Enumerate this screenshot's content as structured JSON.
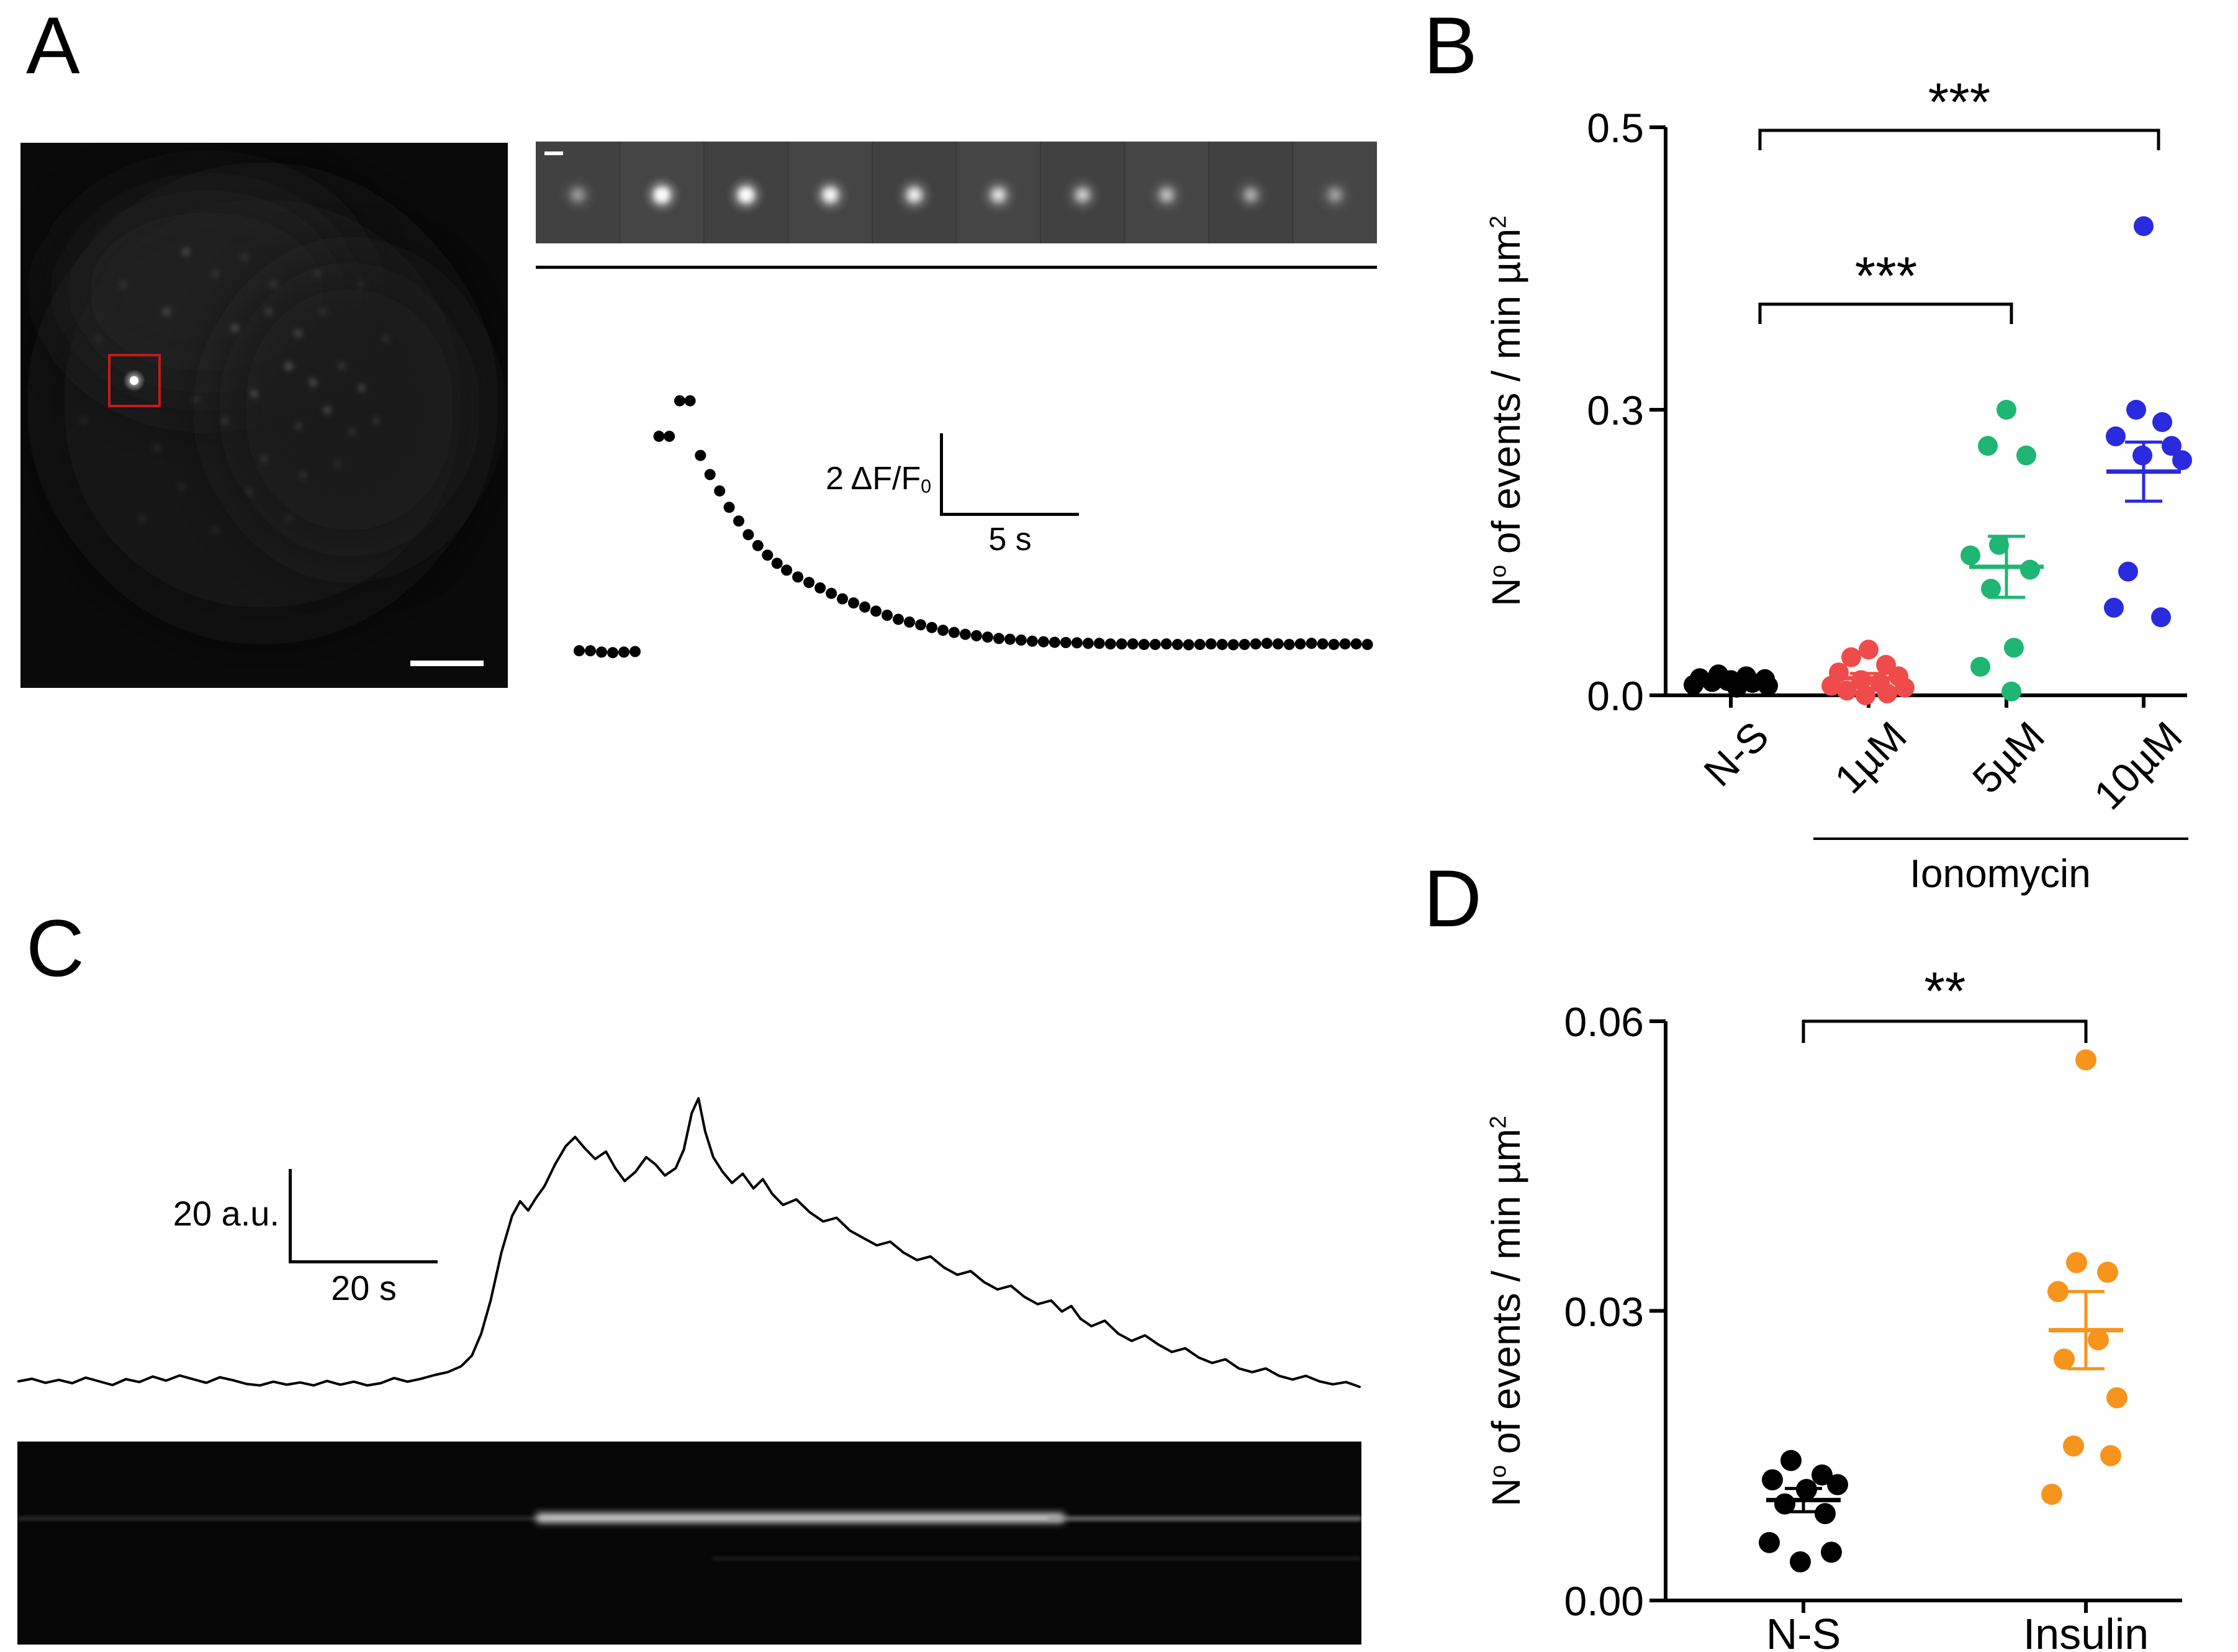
{
  "panelA": {
    "label": "A",
    "scalebar": {
      "y_pre": "2 ",
      "y_unit": "ΔF/F",
      "y_sub": "0",
      "x_label": "5 s"
    },
    "montage": {
      "frames": 10,
      "intensities": [
        0.25,
        0.95,
        0.9,
        0.75,
        0.65,
        0.55,
        0.45,
        0.38,
        0.32,
        0.27
      ]
    },
    "cell_image": {
      "dots": [
        [
          34,
          20,
          5,
          0.3
        ],
        [
          40,
          24,
          4,
          0.25
        ],
        [
          46,
          21,
          4,
          0.2
        ],
        [
          52,
          26,
          4,
          0.25
        ],
        [
          30,
          31,
          5,
          0.3
        ],
        [
          44,
          34,
          5,
          0.35
        ],
        [
          51,
          31,
          4,
          0.3
        ],
        [
          57,
          35,
          5,
          0.3
        ],
        [
          62,
          31,
          4,
          0.22
        ],
        [
          55,
          41,
          5,
          0.4
        ],
        [
          60,
          44,
          5,
          0.35
        ],
        [
          66,
          41,
          4,
          0.28
        ],
        [
          70,
          45,
          5,
          0.3
        ],
        [
          63,
          49,
          5,
          0.35
        ],
        [
          57,
          52,
          4,
          0.3
        ],
        [
          68,
          53,
          4,
          0.26
        ],
        [
          73,
          51,
          4,
          0.22
        ],
        [
          48,
          46,
          5,
          0.32
        ],
        [
          42,
          51,
          4,
          0.26
        ],
        [
          36,
          47,
          4,
          0.2
        ],
        [
          50,
          58,
          4,
          0.26
        ],
        [
          58,
          61,
          4,
          0.22
        ],
        [
          65,
          59,
          4,
          0.2
        ],
        [
          28,
          56,
          4,
          0.2
        ],
        [
          33,
          63,
          4,
          0.16
        ],
        [
          25,
          69,
          4,
          0.18
        ],
        [
          40,
          71,
          4,
          0.16
        ],
        [
          55,
          69,
          4,
          0.16
        ],
        [
          21,
          26,
          4,
          0.2
        ],
        [
          16,
          36,
          4,
          0.16
        ],
        [
          70,
          26,
          4,
          0.16
        ],
        [
          75,
          36,
          4,
          0.2
        ],
        [
          13,
          51,
          4,
          0.15
        ],
        [
          47,
          64,
          4,
          0.18
        ],
        [
          61,
          24,
          4,
          0.2
        ]
      ]
    }
  },
  "panelB": {
    "label": "B",
    "y_title": {
      "p1": "N",
      "sup1": "o",
      "p2": " of events / min µm",
      "sup2": "2"
    },
    "yticks": [
      "0.5",
      "0.3",
      "0.0"
    ],
    "categories": [
      "N-S",
      "1µM",
      "5µM",
      "10µM"
    ],
    "group_label": "Ionomycin",
    "sig_top": "***",
    "sig_mid": "***"
  },
  "panelC": {
    "label": "C",
    "scalebar": {
      "y_label": "20 a.u.",
      "x_label": "20 s"
    }
  },
  "panelD": {
    "label": "D",
    "y_title": {
      "p1": "N",
      "sup1": "o",
      "p2": " of events / min µm",
      "sup2": "2"
    },
    "yticks": [
      "0.06",
      "0.03",
      "0.00"
    ],
    "categories": [
      "N-S",
      "Insulin"
    ],
    "sig": "**"
  },
  "chart_data": [
    {
      "id": "B",
      "type": "scatter",
      "title": "",
      "ylabel": "N° of events / min µm²",
      "ylim": [
        0,
        0.5
      ],
      "ytick_values": [
        0.0,
        0.3,
        0.5
      ],
      "categories": [
        "N-S",
        "1µM",
        "5µM",
        "10µM"
      ],
      "group_annotation": "Ionomycin",
      "series": [
        {
          "name": "N-S",
          "color": "#000000",
          "mean": 0.0145,
          "sem": 0.0015,
          "points": [
            [
              0.022,
              -20
            ],
            [
              0.02,
              25
            ],
            [
              0.018,
              -50
            ],
            [
              0.017,
              55
            ],
            [
              0.016,
              0
            ],
            [
              0.014,
              -30
            ],
            [
              0.013,
              35
            ],
            [
              0.011,
              -60
            ],
            [
              0.01,
              60
            ],
            [
              0.008,
              10
            ],
            [
              0.015,
              -5
            ]
          ]
        },
        {
          "name": "1µM",
          "color": "#F04B4B",
          "mean": 0.018,
          "sem": 0.005,
          "points": [
            [
              0.048,
              0
            ],
            [
              0.04,
              -28
            ],
            [
              0.032,
              28
            ],
            [
              0.024,
              -48
            ],
            [
              0.02,
              48
            ],
            [
              0.016,
              -12
            ],
            [
              0.013,
              18
            ],
            [
              0.01,
              -60
            ],
            [
              0.008,
              58
            ],
            [
              0.005,
              -35
            ],
            [
              0.002,
              30
            ],
            [
              0.0,
              -5
            ]
          ]
        },
        {
          "name": "5µM",
          "color": "#1FB573",
          "mean": 0.135,
          "sem": 0.032,
          "points": [
            [
              0.3,
              0
            ],
            [
              0.262,
              -30
            ],
            [
              0.252,
              32
            ],
            [
              0.158,
              -12
            ],
            [
              0.147,
              -58
            ],
            [
              0.132,
              38
            ],
            [
              0.112,
              -25
            ],
            [
              0.05,
              12
            ],
            [
              0.03,
              -42
            ],
            [
              0.004,
              8
            ]
          ]
        },
        {
          "name": "10µM",
          "color": "#2A2ADF",
          "mean": 0.235,
          "sem": 0.031,
          "points": [
            [
              0.43,
              0
            ],
            [
              0.3,
              -12
            ],
            [
              0.287,
              30
            ],
            [
              0.272,
              -45
            ],
            [
              0.262,
              45
            ],
            [
              0.252,
              -2
            ],
            [
              0.247,
              62
            ],
            [
              0.13,
              -25
            ],
            [
              0.092,
              -48
            ],
            [
              0.082,
              28
            ]
          ]
        }
      ],
      "significance": [
        {
          "pair": [
            "N-S",
            "10µM"
          ],
          "label": "***"
        },
        {
          "pair": [
            "N-S",
            "5µM"
          ],
          "label": "***"
        }
      ]
    },
    {
      "id": "D",
      "type": "scatter",
      "title": "",
      "ylabel": "N° of events / min µm²",
      "ylim": [
        0,
        0.06
      ],
      "ytick_values": [
        0.0,
        0.03,
        0.06
      ],
      "categories": [
        "N-S",
        "Insulin"
      ],
      "series": [
        {
          "name": "N-S",
          "color": "#000000",
          "mean": 0.0104,
          "sem": 0.0012,
          "points": [
            [
              0.0145,
              -20
            ],
            [
              0.013,
              30
            ],
            [
              0.0125,
              -50
            ],
            [
              0.012,
              55
            ],
            [
              0.0115,
              5
            ],
            [
              0.01,
              -30
            ],
            [
              0.009,
              35
            ],
            [
              0.006,
              -55
            ],
            [
              0.005,
              45
            ],
            [
              0.004,
              -5
            ]
          ]
        },
        {
          "name": "Insulin",
          "color": "#F7941D",
          "mean": 0.028,
          "sem": 0.004,
          "points": [
            [
              0.056,
              0
            ],
            [
              0.035,
              -15
            ],
            [
              0.034,
              35
            ],
            [
              0.032,
              -45
            ],
            [
              0.027,
              20
            ],
            [
              0.025,
              -35
            ],
            [
              0.021,
              50
            ],
            [
              0.016,
              -20
            ],
            [
              0.015,
              40
            ],
            [
              0.011,
              -55
            ]
          ]
        }
      ],
      "significance": [
        {
          "pair": [
            "N-S",
            "Insulin"
          ],
          "label": "**"
        }
      ]
    },
    {
      "id": "A_trace",
      "type": "line",
      "style": "dotted",
      "y_scale_bar": "2 ΔF/F0",
      "x_scale_bar": "5 s",
      "coords": "percent of trace box, y measured from top",
      "points_pct": [
        [
          0,
          95.5
        ],
        [
          1.4,
          95.5
        ],
        [
          2.8,
          96
        ],
        [
          4.2,
          96.2
        ],
        [
          5.6,
          96
        ],
        [
          7,
          95.8
        ],
        [
          10,
          17
        ],
        [
          11.3,
          17
        ],
        [
          12.6,
          4
        ],
        [
          13.9,
          4
        ],
        [
          15.2,
          24
        ],
        [
          16.4,
          31
        ],
        [
          17.6,
          37
        ],
        [
          18.8,
          43
        ],
        [
          20,
          48
        ],
        [
          21.2,
          53
        ],
        [
          22.4,
          57
        ],
        [
          23.6,
          60.5
        ],
        [
          24.8,
          63.5
        ],
        [
          26,
          66
        ],
        [
          27.4,
          68.5
        ],
        [
          28.8,
          70.5
        ],
        [
          30.2,
          72.5
        ],
        [
          31.6,
          74.5
        ],
        [
          33,
          76.5
        ],
        [
          34.4,
          78
        ],
        [
          35.8,
          79.5
        ],
        [
          37.2,
          81
        ],
        [
          38.6,
          82.5
        ],
        [
          40,
          84
        ],
        [
          41.4,
          85
        ],
        [
          42.8,
          86
        ],
        [
          44.2,
          87
        ],
        [
          45.6,
          88
        ],
        [
          47,
          88.8
        ],
        [
          48.4,
          89.5
        ],
        [
          49.8,
          90
        ],
        [
          51.2,
          90.5
        ],
        [
          52.6,
          91
        ],
        [
          54,
          91.3
        ],
        [
          55.4,
          91.6
        ],
        [
          56.8,
          92
        ],
        [
          58.2,
          92.2
        ],
        [
          59.6,
          92.4
        ],
        [
          61,
          92.5
        ],
        [
          62.4,
          92.6
        ],
        [
          63.8,
          92.8
        ],
        [
          65.2,
          92.8
        ],
        [
          66.6,
          93
        ],
        [
          68,
          93
        ],
        [
          69.4,
          93
        ],
        [
          70.8,
          93.2
        ],
        [
          72.2,
          93.2
        ],
        [
          73.6,
          93
        ],
        [
          75,
          93.2
        ],
        [
          76.4,
          93.3
        ],
        [
          77.8,
          93.2
        ],
        [
          79.2,
          93
        ],
        [
          80.6,
          93.2
        ],
        [
          82,
          93.3
        ],
        [
          83.4,
          93.2
        ],
        [
          84.8,
          93
        ],
        [
          86.2,
          92.8
        ],
        [
          87.6,
          93
        ],
        [
          89,
          93.2
        ],
        [
          90.4,
          93
        ],
        [
          91.8,
          92.8
        ],
        [
          93.2,
          93
        ],
        [
          94.6,
          93.2
        ],
        [
          96,
          93
        ],
        [
          97.4,
          93
        ],
        [
          98.8,
          93.2
        ]
      ]
    },
    {
      "id": "C_trace",
      "type": "line",
      "y_scale_bar": "20 a.u.",
      "x_scale_bar": "20 s",
      "coords": "percent of trace box, y measured from top",
      "points_pct": [
        [
          0,
          87
        ],
        [
          1,
          86.3
        ],
        [
          2,
          87.4
        ],
        [
          3,
          86.6
        ],
        [
          4,
          87.5
        ],
        [
          5,
          86
        ],
        [
          6,
          87
        ],
        [
          7,
          88
        ],
        [
          8,
          86.4
        ],
        [
          9,
          87.2
        ],
        [
          10,
          85.7
        ],
        [
          11,
          86.8
        ],
        [
          12,
          85.4
        ],
        [
          13,
          86.4
        ],
        [
          14,
          87.4
        ],
        [
          15,
          85.9
        ],
        [
          16,
          86.7
        ],
        [
          17,
          87.7
        ],
        [
          18,
          88.1
        ],
        [
          19,
          87.1
        ],
        [
          20,
          87.9
        ],
        [
          21,
          87.3
        ],
        [
          22,
          88.1
        ],
        [
          23,
          86.9
        ],
        [
          24,
          87.9
        ],
        [
          25,
          87.1
        ],
        [
          26,
          88.1
        ],
        [
          27,
          87.5
        ],
        [
          28,
          86.1
        ],
        [
          29,
          87.1
        ],
        [
          30,
          86.3
        ],
        [
          31,
          85.3
        ],
        [
          32,
          84.5
        ],
        [
          33,
          82.9
        ],
        [
          33.8,
          80
        ],
        [
          34.5,
          74
        ],
        [
          35.2,
          65
        ],
        [
          36,
          52
        ],
        [
          36.8,
          42
        ],
        [
          37.4,
          38
        ],
        [
          38,
          40.5
        ],
        [
          38.6,
          37
        ],
        [
          39.2,
          34
        ],
        [
          40,
          28
        ],
        [
          40.8,
          23
        ],
        [
          41.5,
          20.5
        ],
        [
          42.2,
          23.5
        ],
        [
          43,
          26.5
        ],
        [
          43.8,
          24.5
        ],
        [
          44.5,
          29
        ],
        [
          45.2,
          32.5
        ],
        [
          46,
          30
        ],
        [
          46.8,
          26
        ],
        [
          47.5,
          28
        ],
        [
          48.2,
          31
        ],
        [
          49,
          29
        ],
        [
          49.6,
          24
        ],
        [
          50.2,
          14
        ],
        [
          50.7,
          10
        ],
        [
          51.2,
          19
        ],
        [
          51.8,
          26
        ],
        [
          52.5,
          30
        ],
        [
          53.2,
          33
        ],
        [
          54,
          30.5
        ],
        [
          54.8,
          34.5
        ],
        [
          55.5,
          32
        ],
        [
          56.2,
          36
        ],
        [
          57,
          39
        ],
        [
          58,
          37.5
        ],
        [
          59,
          41
        ],
        [
          60,
          43.5
        ],
        [
          61,
          42.5
        ],
        [
          62,
          46
        ],
        [
          63,
          48
        ],
        [
          64,
          50
        ],
        [
          65,
          49
        ],
        [
          66,
          52
        ],
        [
          67,
          54
        ],
        [
          68,
          53
        ],
        [
          69,
          56
        ],
        [
          70,
          58
        ],
        [
          71,
          57
        ],
        [
          72,
          60
        ],
        [
          73,
          62
        ],
        [
          74,
          61
        ],
        [
          75,
          64
        ],
        [
          76,
          66
        ],
        [
          77,
          65
        ],
        [
          77.8,
          68
        ],
        [
          78.5,
          66.5
        ],
        [
          79.2,
          70
        ],
        [
          80,
          72
        ],
        [
          81,
          70.5
        ],
        [
          82,
          74
        ],
        [
          83,
          76
        ],
        [
          84,
          74.5
        ],
        [
          85,
          77
        ],
        [
          86,
          79
        ],
        [
          87,
          78
        ],
        [
          88,
          80.5
        ],
        [
          89,
          82
        ],
        [
          90,
          81
        ],
        [
          91,
          83.5
        ],
        [
          92,
          84.5
        ],
        [
          93,
          83.5
        ],
        [
          94,
          85.5
        ],
        [
          95,
          86.5
        ],
        [
          96,
          85.5
        ],
        [
          97,
          87
        ],
        [
          98,
          87.8
        ],
        [
          99,
          87.2
        ],
        [
          100,
          88.5
        ]
      ]
    }
  ]
}
